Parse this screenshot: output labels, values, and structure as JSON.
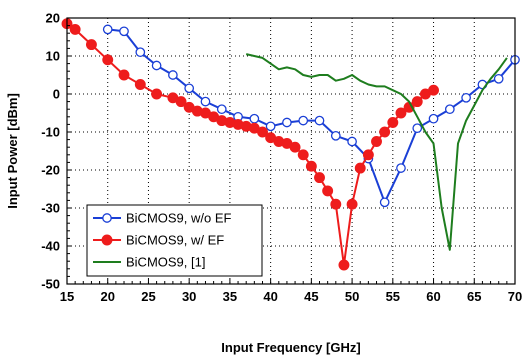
{
  "chart_data": {
    "type": "line",
    "xlabel": "Input Frequency [GHz]",
    "ylabel": "Input Power [dBm]",
    "xlim": [
      15,
      70
    ],
    "ylim": [
      -50,
      20
    ],
    "xticks": [
      15,
      20,
      25,
      30,
      35,
      40,
      45,
      50,
      55,
      60,
      65,
      70
    ],
    "yticks": [
      -50,
      -40,
      -30,
      -20,
      -10,
      0,
      10,
      20
    ],
    "grid": true,
    "legend_position": "lower-left",
    "series": [
      {
        "name": "BiCMOS9, w/o EF",
        "color": "#1a3fd6",
        "marker": "open-circle",
        "x": [
          20,
          22,
          24,
          26,
          28,
          30,
          32,
          34,
          36,
          38,
          40,
          42,
          44,
          46,
          48,
          50,
          52,
          54,
          56,
          58,
          60,
          62,
          64,
          66,
          68,
          70
        ],
        "y": [
          17,
          16.5,
          11,
          7.5,
          5,
          1.5,
          -2,
          -4,
          -6,
          -6.5,
          -8.5,
          -7.5,
          -7,
          -7,
          -11,
          -12.5,
          -17,
          -28.5,
          -19.5,
          -9,
          -6.5,
          -4,
          -1,
          2.5,
          4,
          9
        ]
      },
      {
        "name": "BiCMOS9, w/ EF",
        "color": "#ee1c1c",
        "marker": "filled-circle",
        "x": [
          15,
          16,
          18,
          20,
          22,
          24,
          26,
          28,
          29,
          30,
          31,
          32,
          33,
          34,
          35,
          36,
          37,
          38,
          39,
          40,
          41,
          42,
          43,
          44,
          45,
          46,
          47,
          48,
          49,
          50,
          51,
          52,
          53,
          54,
          55,
          56,
          57,
          58,
          59,
          60
        ],
        "y": [
          18.5,
          17,
          13,
          9,
          5,
          2.5,
          0,
          -1,
          -2,
          -3.5,
          -4.5,
          -5,
          -6,
          -7,
          -7.5,
          -8,
          -8.5,
          -9,
          -10,
          -11.5,
          -12.5,
          -13,
          -14,
          -16,
          -19,
          -22,
          -25.5,
          -29,
          -45,
          -29,
          -19.5,
          -16,
          -12.5,
          -10,
          -7.5,
          -5,
          -3.5,
          -2,
          0,
          1
        ]
      },
      {
        "name": "BiCMOS9, [1]",
        "color": "#1e7d1e",
        "marker": "none",
        "x": [
          37,
          38,
          39,
          40,
          41,
          42,
          43,
          44,
          45,
          46,
          47,
          48,
          49,
          50,
          51,
          52,
          53,
          54,
          55,
          56,
          57,
          58,
          59,
          60,
          61,
          62,
          63,
          64,
          65,
          66,
          67,
          68,
          69
        ],
        "y": [
          10.5,
          10,
          9.5,
          8,
          6.5,
          7,
          6.5,
          5,
          4.5,
          5,
          5,
          3.5,
          4,
          5,
          3.5,
          2.5,
          2,
          2,
          1,
          0,
          -2,
          -6,
          -10,
          -13,
          -30,
          -41,
          -13,
          -7,
          -3,
          1,
          4,
          6.5,
          9.5
        ]
      }
    ]
  }
}
